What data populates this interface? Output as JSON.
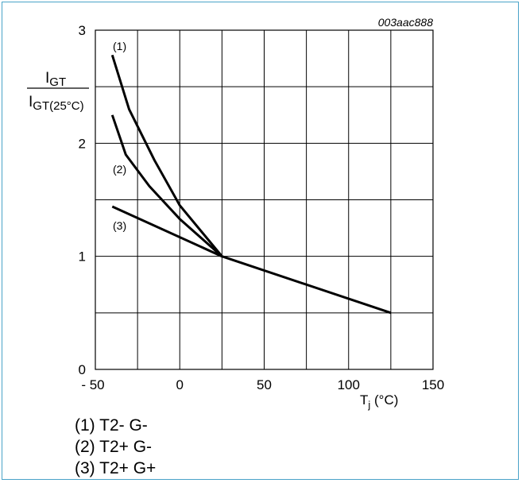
{
  "chart_data": {
    "type": "line",
    "figure_id": "003aac888",
    "ylabel_num": "I",
    "ylabel_num_sub": "GT",
    "ylabel_den": "I",
    "ylabel_den_sub": "GT(25°C)",
    "xlabel_main": "T",
    "xlabel_sub": "j",
    "xlabel_unit": " (°C)",
    "xlim": [
      -50,
      150
    ],
    "ylim": [
      0,
      3
    ],
    "xticks": [
      -50,
      0,
      50,
      100,
      150
    ],
    "xtick_labels": [
      "- 50",
      "0",
      "50",
      "100",
      "150"
    ],
    "yticks": [
      0,
      1,
      2,
      3
    ],
    "xgrid": [
      -50,
      -25,
      0,
      25,
      50,
      75,
      100,
      125,
      150
    ],
    "ygrid": [
      0,
      0.5,
      1,
      1.5,
      2,
      2.5,
      3
    ],
    "series": [
      {
        "name": "(1)",
        "x": [
          -40,
          -30,
          -15,
          0,
          25
        ],
        "y": [
          2.78,
          2.3,
          1.85,
          1.45,
          1.0
        ]
      },
      {
        "name": "(2)",
        "x": [
          -40,
          -32,
          -18,
          0,
          25
        ],
        "y": [
          2.25,
          1.9,
          1.62,
          1.33,
          1.0
        ]
      },
      {
        "name": "(3)",
        "x": [
          -40,
          25,
          125
        ],
        "y": [
          1.44,
          1.0,
          0.5
        ]
      }
    ],
    "legend": [
      "(1) T2- G-",
      "(2) T2+ G-",
      "(3) T2+ G+"
    ]
  }
}
